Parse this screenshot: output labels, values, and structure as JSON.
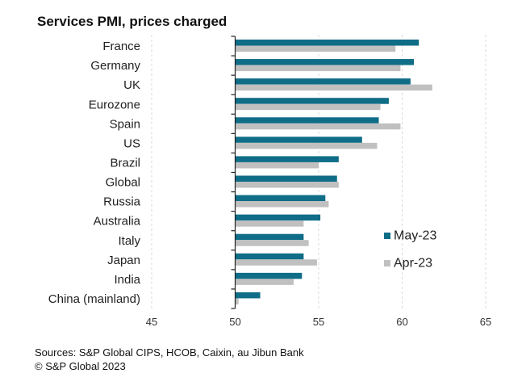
{
  "chart_data": {
    "type": "bar",
    "orientation": "horizontal",
    "title": "Services PMI, prices charged",
    "xlabel": "",
    "ylabel": "",
    "xlim": [
      45,
      65
    ],
    "axis_origin": 50,
    "xticks": [
      45,
      50,
      55,
      60,
      65
    ],
    "grid": "vertical dashed",
    "legend_position": "right",
    "categories": [
      "France",
      "Germany",
      "UK",
      "Eurozone",
      "Spain",
      "US",
      "Brazil",
      "Global",
      "Russia",
      "Australia",
      "Italy",
      "Japan",
      "India",
      "China (mainland)"
    ],
    "series": [
      {
        "name": "May-23",
        "color": "#0f6d87",
        "values": [
          61.0,
          60.7,
          60.5,
          59.2,
          58.6,
          57.6,
          56.2,
          56.1,
          55.4,
          55.1,
          54.1,
          54.1,
          54.0,
          51.5
        ]
      },
      {
        "name": "Apr-23",
        "color": "#c0c0c0",
        "values": [
          59.6,
          59.9,
          61.8,
          58.7,
          59.9,
          58.5,
          55.0,
          56.2,
          55.6,
          54.1,
          54.4,
          54.9,
          53.5,
          50.2
        ]
      }
    ]
  },
  "footer": {
    "sources": "Sources: S&P Global CIPS, HCOB, Caixin, au Jibun Bank",
    "copyright": "© S&P Global 2023"
  }
}
